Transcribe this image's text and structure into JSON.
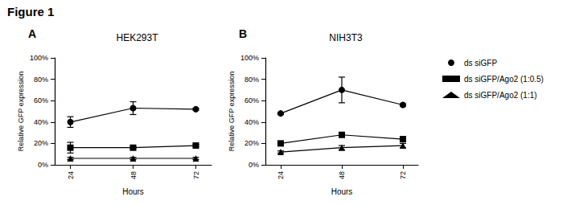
{
  "title": "Figure 1",
  "chart_data": [
    {
      "type": "line",
      "title": "HEK293T",
      "annotations": [
        "A"
      ],
      "x_label": "Hours",
      "y_label": "Relative GFP expression",
      "xlim": [
        18,
        78
      ],
      "xticks": [
        24,
        48,
        72
      ],
      "ylim": [
        0,
        100
      ],
      "yticks": [
        {
          "value": 0,
          "label": "0%"
        },
        {
          "value": 20,
          "label": "20%"
        },
        {
          "value": 40,
          "label": "40%"
        },
        {
          "value": 60,
          "label": "60%"
        },
        {
          "value": 80,
          "label": "80%"
        },
        {
          "value": 100,
          "label": "100%"
        }
      ],
      "grid": false,
      "series": [
        {
          "name": "ds siGFP",
          "color": "#000000",
          "marker": "circle",
          "line_style": "solid",
          "x": [
            24,
            48,
            72
          ],
          "values": [
            40,
            53,
            52
          ],
          "errors": [
            5,
            6,
            1
          ]
        },
        {
          "name": "ds siGFP/Ago2 (1:0.5)",
          "color": "#000000",
          "marker": "square",
          "line_style": "solid",
          "x": [
            24,
            48,
            72
          ],
          "values": [
            16,
            16,
            18
          ],
          "errors": [
            5,
            1,
            1
          ]
        },
        {
          "name": "ds siGFP/Ago2 (1:1)",
          "color": "#000000",
          "marker": "triangle",
          "line_style": "solid",
          "x": [
            24,
            48,
            72
          ],
          "values": [
            6,
            6,
            6
          ],
          "errors": [
            1,
            1,
            1
          ]
        }
      ]
    },
    {
      "type": "line",
      "title": "NIH3T3",
      "annotations": [
        "B"
      ],
      "x_label": "Hours",
      "y_label": "Relative GFP expression",
      "xlim": [
        18,
        78
      ],
      "xticks": [
        24,
        48,
        72
      ],
      "ylim": [
        0,
        100
      ],
      "yticks": [
        {
          "value": 0,
          "label": "0%"
        },
        {
          "value": 20,
          "label": "20%"
        },
        {
          "value": 40,
          "label": "40%"
        },
        {
          "value": 60,
          "label": "60%"
        },
        {
          "value": 80,
          "label": "80%"
        },
        {
          "value": 100,
          "label": "100%"
        }
      ],
      "grid": false,
      "legend": "right",
      "series": [
        {
          "name": "ds siGFP",
          "color": "#000000",
          "marker": "circle",
          "line_style": "solid",
          "x": [
            24,
            48,
            72
          ],
          "values": [
            48,
            70,
            56
          ],
          "errors": [
            1,
            12,
            1
          ]
        },
        {
          "name": "ds siGFP/Ago2 (1:0.5)",
          "color": "#000000",
          "marker": "square",
          "line_style": "solid",
          "x": [
            24,
            48,
            72
          ],
          "values": [
            20,
            28,
            24
          ],
          "errors": [
            1,
            1,
            1
          ]
        },
        {
          "name": "ds siGFP/Ago2 (1:1)",
          "color": "#000000",
          "marker": "triangle",
          "line_style": "solid",
          "x": [
            24,
            48,
            72
          ],
          "values": [
            12,
            16,
            18
          ],
          "errors": [
            1,
            2,
            2
          ]
        }
      ]
    }
  ]
}
